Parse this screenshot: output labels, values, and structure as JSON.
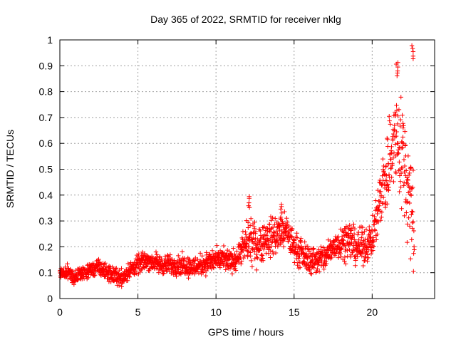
{
  "chart_data": {
    "type": "scatter",
    "title": "Day 365 of 2022, SRMTID for receiver nklg",
    "xlabel": "GPS time / hours",
    "ylabel": "SRMTID / TECUs",
    "xlim": [
      0,
      24
    ],
    "ylim": [
      0,
      1
    ],
    "xticks": [
      0,
      5,
      10,
      15,
      20
    ],
    "xtick_labels": [
      "0",
      "5",
      "10",
      "15",
      "20"
    ],
    "yticks": [
      0,
      0.1,
      0.2,
      0.3,
      0.4,
      0.5,
      0.6,
      0.7,
      0.8,
      0.9,
      1
    ],
    "ytick_labels": [
      "0",
      "0.1",
      "0.2",
      "0.3",
      "0.4",
      "0.5",
      "0.6",
      "0.7",
      "0.8",
      "0.9",
      "1"
    ],
    "grid": true,
    "marker": "+",
    "series": [
      {
        "name": "SRMTID",
        "color": "#ff0000",
        "trend": [
          [
            0.0,
            0.1
          ],
          [
            0.5,
            0.1
          ],
          [
            1.0,
            0.08
          ],
          [
            1.5,
            0.1
          ],
          [
            2.0,
            0.11
          ],
          [
            2.5,
            0.12
          ],
          [
            3.0,
            0.1
          ],
          [
            3.5,
            0.09
          ],
          [
            4.0,
            0.08
          ],
          [
            4.5,
            0.11
          ],
          [
            5.0,
            0.13
          ],
          [
            5.5,
            0.15
          ],
          [
            6.0,
            0.14
          ],
          [
            6.5,
            0.13
          ],
          [
            7.0,
            0.13
          ],
          [
            7.5,
            0.13
          ],
          [
            8.0,
            0.13
          ],
          [
            8.5,
            0.12
          ],
          [
            9.0,
            0.13
          ],
          [
            9.5,
            0.14
          ],
          [
            10.0,
            0.15
          ],
          [
            10.5,
            0.15
          ],
          [
            11.0,
            0.14
          ],
          [
            11.5,
            0.17
          ],
          [
            12.0,
            0.22
          ],
          [
            12.5,
            0.21
          ],
          [
            13.0,
            0.22
          ],
          [
            13.5,
            0.24
          ],
          [
            14.0,
            0.25
          ],
          [
            14.5,
            0.26
          ],
          [
            15.0,
            0.2
          ],
          [
            15.5,
            0.17
          ],
          [
            16.0,
            0.15
          ],
          [
            16.5,
            0.15
          ],
          [
            17.0,
            0.16
          ],
          [
            17.5,
            0.2
          ],
          [
            18.0,
            0.22
          ],
          [
            18.5,
            0.23
          ],
          [
            19.0,
            0.2
          ],
          [
            19.5,
            0.2
          ],
          [
            20.0,
            0.23
          ],
          [
            20.3,
            0.32
          ],
          [
            20.6,
            0.42
          ],
          [
            21.0,
            0.5
          ],
          [
            21.3,
            0.6
          ],
          [
            21.6,
            0.62
          ],
          [
            22.0,
            0.55
          ],
          [
            22.3,
            0.42
          ],
          [
            22.6,
            0.3
          ]
        ],
        "spread": [
          [
            0.0,
            0.03
          ],
          [
            11.5,
            0.05
          ],
          [
            12.0,
            0.09
          ],
          [
            14.0,
            0.08
          ],
          [
            15.5,
            0.06
          ],
          [
            17.5,
            0.06
          ],
          [
            18.5,
            0.08
          ],
          [
            20.0,
            0.07
          ],
          [
            20.5,
            0.12
          ],
          [
            21.0,
            0.2
          ],
          [
            21.5,
            0.25
          ],
          [
            22.0,
            0.25
          ],
          [
            22.7,
            0.25
          ]
        ],
        "x_range": [
          0.0,
          22.7
        ],
        "peaks": [
          {
            "x": 12.1,
            "y": 0.4
          },
          {
            "x": 14.2,
            "y": 0.37
          },
          {
            "x": 21.6,
            "y": 0.92
          },
          {
            "x": 22.6,
            "y": 0.98
          }
        ]
      }
    ]
  }
}
